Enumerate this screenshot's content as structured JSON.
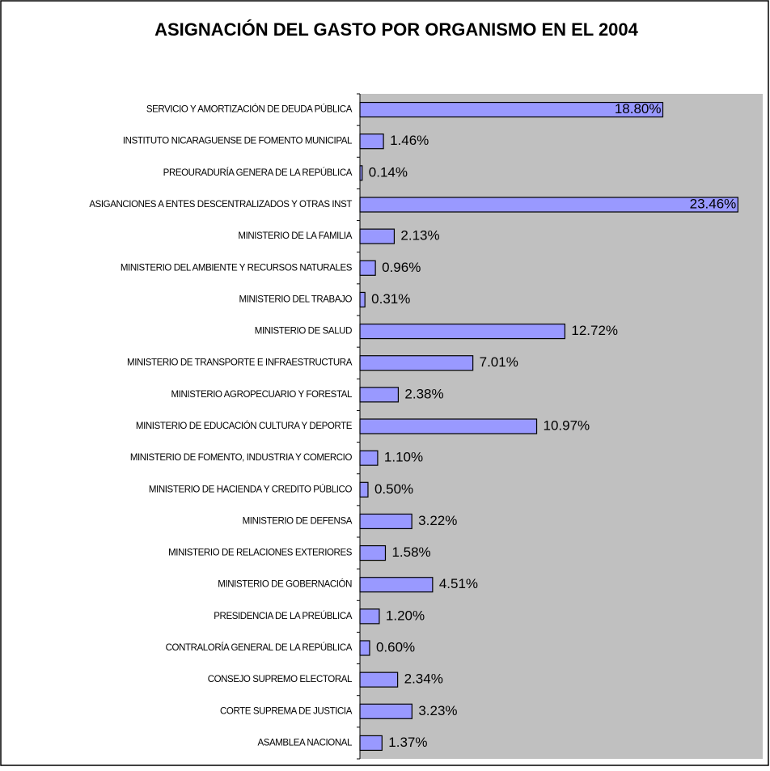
{
  "chart_data": {
    "type": "bar",
    "orientation": "horizontal",
    "title": "ASIGNACIÓN DEL GASTO POR ORGANISMO EN EL 2004",
    "categories": [
      "SERVICIO Y AMORTIZACIÓN DE DEUDA PÚBLICA",
      "INSTITUTO NICARAGUENSE DE FOMENTO MUNICIPAL",
      "PREOURADURÍA GENERA DE LA REPÚBLICA",
      "ASIGANCIONES A ENTES DESCENTRALIZADOS Y OTRAS INST",
      "MINISTERIO DE LA FAMILIA",
      "MINISTERIO DEL AMBIENTE Y RECURSOS NATURALES",
      "MINISTERIO DEL TRABAJO",
      "MINISTERIO DE SALUD",
      "MINISTERIO DE TRANSPORTE E INFRAESTRUCTURA",
      "MINISTERIO AGROPECUARIO Y FORESTAL",
      "MINISTERIO DE EDUCACIÓN CULTURA Y DEPORTE",
      "MINISTERIO DE FOMENTO, INDUSTRIA Y COMERCIO",
      "MINISTERIO DE HACIENDA Y CREDITO PÚBLICO",
      "MINISTERIO DE DEFENSA",
      "MINISTERIO DE RELACIONES EXTERIORES",
      "MINISTERIO DE GOBERNACIÓN",
      "PRESIDENCIA DE LA PREÚBLICA",
      "CONTRALORÍA GENERAL DE LA REPÚBLICA",
      "CONSEJO SUPREMO ELECTORAL",
      "CORTE SUPREMA DE JUSTICIA",
      "ASAMBLEA NACIONAL"
    ],
    "values": [
      18.8,
      1.46,
      0.14,
      23.46,
      2.13,
      0.96,
      0.31,
      12.72,
      7.01,
      2.38,
      10.97,
      1.1,
      0.5,
      3.22,
      1.58,
      4.51,
      1.2,
      0.6,
      2.34,
      3.23,
      1.37
    ],
    "value_labels": [
      "18.80%",
      "1.46%",
      "0.14%",
      "23.46%",
      "2.13%",
      "0.96%",
      "0.31%",
      "12.72%",
      "7.01%",
      "2.38%",
      "10.97%",
      "1.10%",
      "0.50%",
      "3.22%",
      "1.58%",
      "4.51%",
      "1.20%",
      "0.60%",
      "2.34%",
      "3.23%",
      "1.37%"
    ],
    "color": "#9999ff",
    "xlim": [
      0,
      25
    ]
  }
}
